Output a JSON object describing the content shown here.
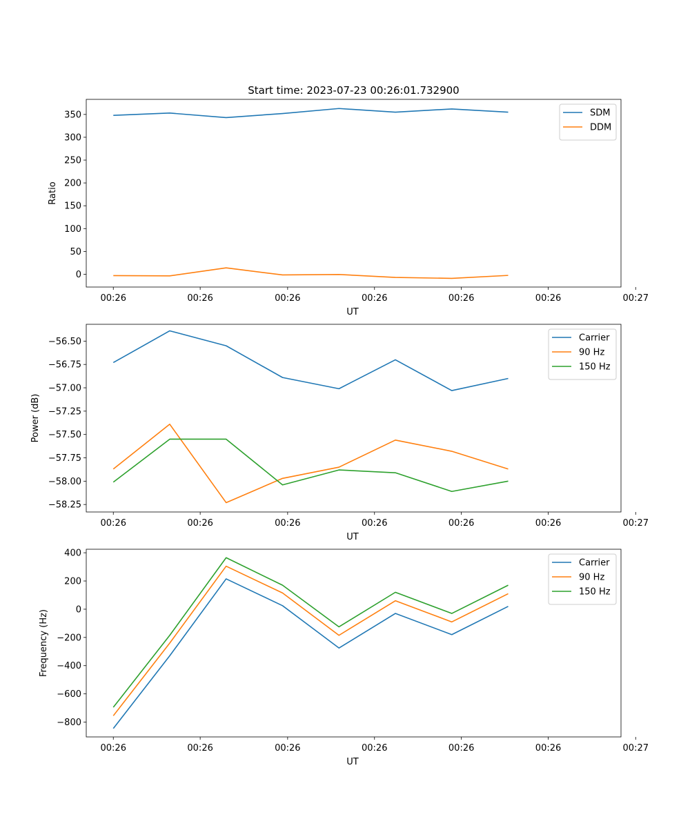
{
  "colors": {
    "c0": "#1f77b4",
    "c1": "#ff7f0e",
    "c2": "#2ca02c"
  },
  "chart_data": [
    {
      "type": "line",
      "title": "Start time: 2023-07-23 00:26:01.732900",
      "xlabel": "UT",
      "ylabel": "Ratio",
      "ylim": [
        -28,
        383
      ],
      "yticks": [
        0,
        50,
        100,
        150,
        200,
        250,
        300,
        350
      ],
      "xlim": [
        -0.48,
        9.0
      ],
      "xtick_positions": [
        0,
        1.54,
        3.09,
        4.63,
        6.17,
        7.71,
        9.26
      ],
      "xtick_labels": [
        "00:26",
        "00:26",
        "00:26",
        "00:26",
        "00:26",
        "00:26",
        "00:27"
      ],
      "x": [
        0,
        1,
        2,
        3,
        4,
        5,
        6,
        7
      ],
      "legend": "top-right",
      "series": [
        {
          "name": "SDM",
          "values": [
            348,
            353,
            343,
            352,
            363,
            355,
            362,
            355
          ]
        },
        {
          "name": "DDM",
          "values": [
            -3,
            -3.5,
            14,
            -1.5,
            -0.5,
            -7,
            -9,
            -2.5
          ]
        }
      ]
    },
    {
      "type": "line",
      "title": "",
      "xlabel": "UT",
      "ylabel": "Power (dB)",
      "ylim": [
        -58.33,
        -56.32
      ],
      "yticks": [
        -58.25,
        -58.0,
        -57.75,
        -57.5,
        -57.25,
        -57.0,
        -56.75,
        -56.5
      ],
      "ytick_labels": [
        "−58.25",
        "−58.00",
        "−57.75",
        "−57.50",
        "−57.25",
        "−57.00",
        "−56.75",
        "−56.50"
      ],
      "xlim": [
        -0.48,
        9.0
      ],
      "xtick_positions": [
        0,
        1.54,
        3.09,
        4.63,
        6.17,
        7.71,
        9.26
      ],
      "xtick_labels": [
        "00:26",
        "00:26",
        "00:26",
        "00:26",
        "00:26",
        "00:26",
        "00:27"
      ],
      "x": [
        0,
        1,
        2,
        3,
        4,
        5,
        6,
        7
      ],
      "legend": "top-right",
      "series": [
        {
          "name": "Carrier",
          "values": [
            -56.73,
            -56.39,
            -56.55,
            -56.89,
            -57.01,
            -56.7,
            -57.03,
            -56.9
          ]
        },
        {
          "name": "90 Hz",
          "values": [
            -57.87,
            -57.39,
            -58.23,
            -57.97,
            -57.85,
            -57.56,
            -57.68,
            -57.87
          ]
        },
        {
          "name": "150 Hz",
          "values": [
            -58.01,
            -57.55,
            -57.55,
            -58.04,
            -57.88,
            -57.91,
            -58.11,
            -58.0
          ]
        }
      ]
    },
    {
      "type": "line",
      "title": "",
      "xlabel": "UT",
      "ylabel": "Frequency (Hz)",
      "ylim": [
        -905,
        425
      ],
      "yticks": [
        -800,
        -600,
        -400,
        -200,
        0,
        200,
        400
      ],
      "ytick_labels": [
        "−800",
        "−600",
        "−400",
        "−200",
        "0",
        "200",
        "400"
      ],
      "xlim": [
        -0.48,
        9.0
      ],
      "xtick_positions": [
        0,
        1.54,
        3.09,
        4.63,
        6.17,
        7.71,
        9.26
      ],
      "xtick_labels": [
        "00:26",
        "00:26",
        "00:26",
        "00:26",
        "00:26",
        "00:26",
        "00:27"
      ],
      "x": [
        0,
        1,
        2,
        3,
        4,
        5,
        6,
        7
      ],
      "legend": "top-right",
      "series": [
        {
          "name": "Carrier",
          "values": [
            -845,
            -330,
            215,
            25,
            -275,
            -30,
            -180,
            20
          ]
        },
        {
          "name": "90 Hz",
          "values": [
            -755,
            -240,
            305,
            115,
            -185,
            60,
            -90,
            110
          ]
        },
        {
          "name": "150 Hz",
          "values": [
            -695,
            -185,
            365,
            170,
            -125,
            120,
            -30,
            170
          ]
        }
      ]
    }
  ]
}
